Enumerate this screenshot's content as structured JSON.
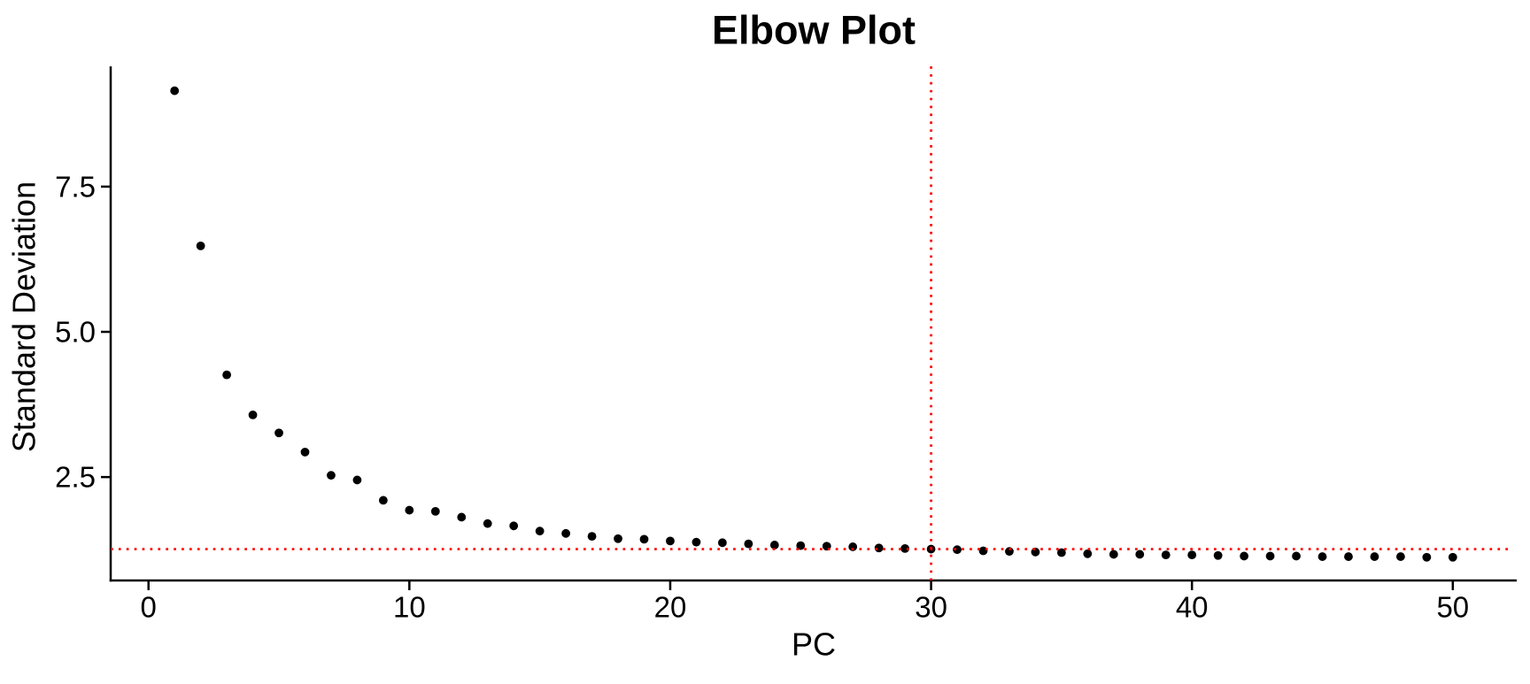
{
  "page": {
    "background": "#ffffff"
  },
  "chart_data": {
    "type": "scatter",
    "title": "Elbow Plot",
    "xlabel": "PC",
    "ylabel": "Standard Deviation",
    "x": [
      1,
      2,
      3,
      4,
      5,
      6,
      7,
      8,
      9,
      10,
      11,
      12,
      13,
      14,
      15,
      16,
      17,
      18,
      19,
      20,
      21,
      22,
      23,
      24,
      25,
      26,
      27,
      28,
      29,
      30,
      31,
      32,
      33,
      34,
      35,
      36,
      37,
      38,
      39,
      40,
      41,
      42,
      43,
      44,
      45,
      46,
      47,
      48,
      49,
      50
    ],
    "y": [
      9.15,
      6.48,
      4.26,
      3.57,
      3.26,
      2.93,
      2.53,
      2.45,
      2.1,
      1.93,
      1.91,
      1.81,
      1.7,
      1.66,
      1.57,
      1.53,
      1.48,
      1.44,
      1.43,
      1.4,
      1.38,
      1.37,
      1.35,
      1.33,
      1.32,
      1.31,
      1.3,
      1.28,
      1.27,
      1.26,
      1.25,
      1.23,
      1.22,
      1.21,
      1.2,
      1.18,
      1.17,
      1.17,
      1.16,
      1.16,
      1.15,
      1.14,
      1.14,
      1.14,
      1.13,
      1.13,
      1.13,
      1.13,
      1.12,
      1.12
    ],
    "x_tick_values": [
      0,
      10,
      20,
      30,
      40,
      50
    ],
    "x_tick_labels": [
      "0",
      "10",
      "20",
      "30",
      "40",
      "50"
    ],
    "y_tick_values": [
      2.5,
      5.0,
      7.5
    ],
    "y_tick_labels": [
      "2.5",
      "5.0",
      "7.5"
    ],
    "xlim": [
      -1.45,
      52.45
    ],
    "ylim": [
      0.72,
      9.57
    ],
    "grid": false,
    "legend": false,
    "point_color": "#000000",
    "axis_color": "#000000",
    "background_color": "#ffffff",
    "reference_lines": {
      "vline_x": 30,
      "hline_y": 1.26,
      "color": "#ff0000",
      "style": "dotted"
    }
  }
}
